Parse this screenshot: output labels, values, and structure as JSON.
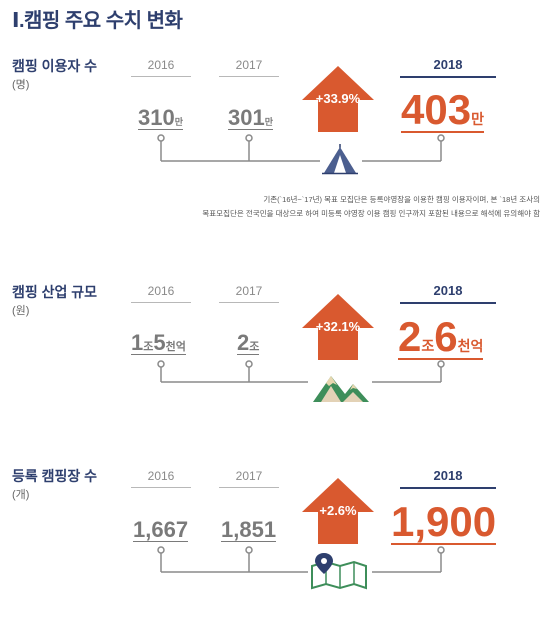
{
  "title": "Ⅰ.캠핑 주요 수치 변화",
  "sections": [
    {
      "label": "캠핑 이용자 수",
      "unit": "(명)",
      "years": [
        "2016",
        "2017",
        "2018"
      ],
      "values": [
        {
          "num": "310",
          "suffix": "만"
        },
        {
          "num": "301",
          "suffix": "만"
        },
        {
          "num": "403",
          "suffix": "만"
        }
      ],
      "change": "+33.9%",
      "icon": "tent-icon",
      "note_line1": "기존(`16년~`17년) 목표 모집단은 등록야영장을 이용한 캠핑 이용자이며, 본 `18년 조사의",
      "note_line2": "목표모집단은 전국민을 대상으로 하여 미등록 야영장 이용 캠핑 인구까지 포함된 내용으로 해석에 유의해야 함"
    },
    {
      "label": "캠핑 산업 규모",
      "unit": "(원)",
      "years": [
        "2016",
        "2017",
        "2018"
      ],
      "values": [
        {
          "parts": [
            "1",
            "조",
            "5",
            "천억"
          ]
        },
        {
          "parts": [
            "2",
            "조"
          ]
        },
        {
          "parts": [
            "2",
            "조",
            "6",
            "천억"
          ]
        }
      ],
      "change": "+32.1%",
      "icon": "mountain-icon"
    },
    {
      "label": "등록 캠핑장 수",
      "unit": "(개)",
      "years": [
        "2016",
        "2017",
        "2018"
      ],
      "values": [
        {
          "num": "1,667"
        },
        {
          "num": "1,851"
        },
        {
          "num": "1,900"
        }
      ],
      "change": "+2.6%",
      "icon": "map-pin-icon"
    }
  ],
  "colors": {
    "navy": "#2e3f6e",
    "orange": "#d9592f",
    "gray": "#7a7a7a",
    "green": "#3e8e5a"
  }
}
